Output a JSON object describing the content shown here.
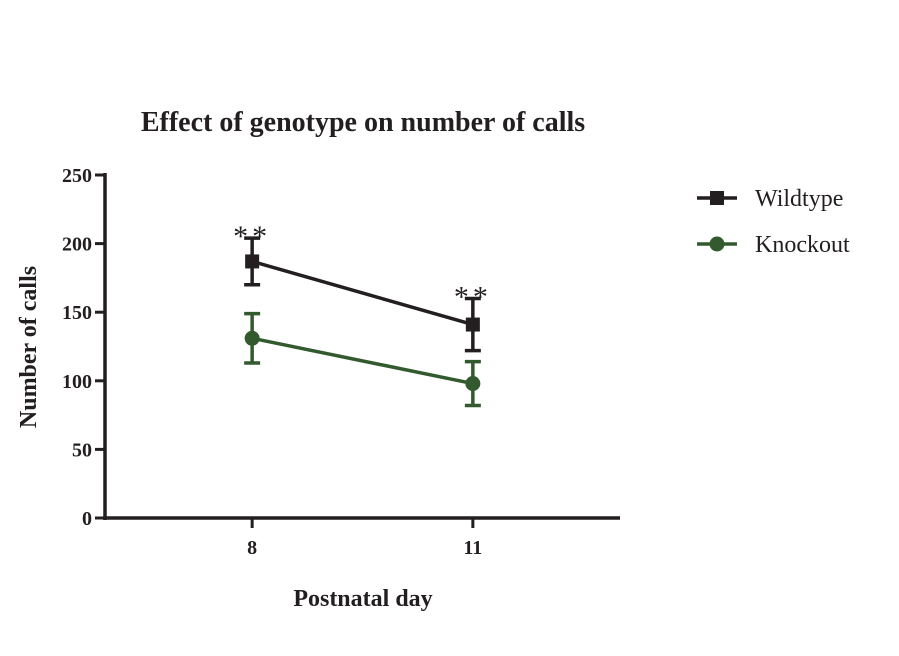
{
  "chart_data": {
    "type": "line",
    "title": "Effect of genotype on number of calls",
    "xlabel": "Postnatal day",
    "ylabel": "Number of calls",
    "x": [
      8,
      11
    ],
    "xticks": [
      "8",
      "11"
    ],
    "xlim": [
      6,
      13
    ],
    "ylim": [
      0,
      250
    ],
    "yticks": [
      "0",
      "50",
      "100",
      "150",
      "200",
      "250"
    ],
    "grid": false,
    "legend_position": "right",
    "series": [
      {
        "name": "Wildtype",
        "values": [
          187,
          141
        ],
        "errors": [
          17,
          19
        ],
        "marker": "square",
        "color": "#231f20"
      },
      {
        "name": "Knockout",
        "values": [
          131,
          98
        ],
        "errors": [
          18,
          16
        ],
        "marker": "circle",
        "color": "#335a2e"
      }
    ],
    "annotations": [
      {
        "x": 8,
        "text": "**"
      },
      {
        "x": 11,
        "text": "**"
      }
    ]
  }
}
